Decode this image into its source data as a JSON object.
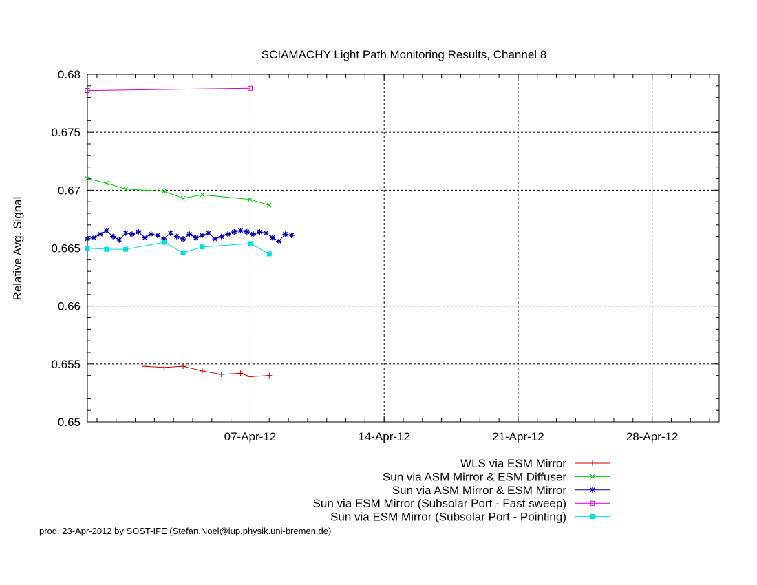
{
  "chart_data": {
    "type": "line",
    "title": "SCIAMACHY Light Path Monitoring Results, Channel 8",
    "xlabel": "",
    "ylabel": "Relative Avg. Signal",
    "x_axis": {
      "type": "date",
      "range": [
        "2012-03-29T12:00",
        "2012-05-01T12:00"
      ],
      "ticks": [
        {
          "date": "2012-04-07",
          "label": "07-Apr-12"
        },
        {
          "date": "2012-04-14",
          "label": "14-Apr-12"
        },
        {
          "date": "2012-04-21",
          "label": "21-Apr-12"
        },
        {
          "date": "2012-04-28",
          "label": "28-Apr-12"
        }
      ]
    },
    "ylim": [
      0.65,
      0.68
    ],
    "y_ticks": [
      "0.65",
      "0.655",
      "0.66",
      "0.665",
      "0.67",
      "0.675",
      "0.68"
    ],
    "grid": true,
    "legend_position": "bottom-right",
    "series": [
      {
        "name": "WLS via ESM Mirror",
        "color": "#cc0000",
        "marker": "plus",
        "points": [
          [
            "2012-04-01T12:00",
            0.6548
          ],
          [
            "2012-04-02T12:00",
            0.6547
          ],
          [
            "2012-04-03T12:00",
            0.6548
          ],
          [
            "2012-04-04T12:00",
            0.6544
          ],
          [
            "2012-04-05T12:00",
            0.6541
          ],
          [
            "2012-04-06T12:00",
            0.6542
          ],
          [
            "2012-04-07T00:00",
            0.6539
          ],
          [
            "2012-04-08T00:00",
            0.654
          ]
        ]
      },
      {
        "name": "Sun via ASM Mirror & ESM Diffuser",
        "color": "#00cc00",
        "marker": "cross",
        "points": [
          [
            "2012-03-29T12:00",
            0.671
          ],
          [
            "2012-03-30T12:00",
            0.6706
          ],
          [
            "2012-03-31T12:00",
            0.6701
          ],
          [
            "2012-04-02T12:00",
            0.6699
          ],
          [
            "2012-04-03T12:00",
            0.6693
          ],
          [
            "2012-04-04T12:00",
            0.6696
          ],
          [
            "2012-04-07T00:00",
            0.6692
          ],
          [
            "2012-04-08T00:00",
            0.6687
          ]
        ]
      },
      {
        "name": "Sun via ASM Mirror & ESM Mirror",
        "color": "#0000b0",
        "marker": "star",
        "points": [
          [
            "2012-03-29T12:00",
            0.6658
          ],
          [
            "2012-03-29T20:00",
            0.6659
          ],
          [
            "2012-03-30T04:00",
            0.6662
          ],
          [
            "2012-03-30T12:00",
            0.6665
          ],
          [
            "2012-03-30T20:00",
            0.666
          ],
          [
            "2012-03-31T04:00",
            0.6657
          ],
          [
            "2012-03-31T12:00",
            0.6663
          ],
          [
            "2012-03-31T20:00",
            0.6662
          ],
          [
            "2012-04-01T04:00",
            0.6664
          ],
          [
            "2012-04-01T12:00",
            0.6659
          ],
          [
            "2012-04-01T20:00",
            0.6662
          ],
          [
            "2012-04-02T04:00",
            0.6661
          ],
          [
            "2012-04-02T12:00",
            0.6658
          ],
          [
            "2012-04-02T20:00",
            0.6663
          ],
          [
            "2012-04-03T04:00",
            0.666
          ],
          [
            "2012-04-03T12:00",
            0.6658
          ],
          [
            "2012-04-03T20:00",
            0.6662
          ],
          [
            "2012-04-04T04:00",
            0.6659
          ],
          [
            "2012-04-04T12:00",
            0.6661
          ],
          [
            "2012-04-04T20:00",
            0.6663
          ],
          [
            "2012-04-05T04:00",
            0.6658
          ],
          [
            "2012-04-05T12:00",
            0.666
          ],
          [
            "2012-04-05T20:00",
            0.6662
          ],
          [
            "2012-04-06T04:00",
            0.6664
          ],
          [
            "2012-04-06T12:00",
            0.6665
          ],
          [
            "2012-04-06T20:00",
            0.6664
          ],
          [
            "2012-04-07T04:00",
            0.6662
          ],
          [
            "2012-04-07T12:00",
            0.6664
          ],
          [
            "2012-04-07T20:00",
            0.6663
          ],
          [
            "2012-04-08T04:00",
            0.6659
          ],
          [
            "2012-04-08T12:00",
            0.6656
          ],
          [
            "2012-04-08T20:00",
            0.6662
          ],
          [
            "2012-04-09T04:00",
            0.6661
          ]
        ]
      },
      {
        "name": "Sun via ESM Mirror (Subsolar Port - Fast sweep)",
        "color": "#cc00cc",
        "marker": "square",
        "points": [
          [
            "2012-03-29T12:00",
            0.6786
          ],
          [
            "2012-04-07T00:00",
            0.6788
          ]
        ]
      },
      {
        "name": "Sun via ESM Mirror (Subsolar Port - Pointing)",
        "color": "#00dddd",
        "marker": "filled-square",
        "points": [
          [
            "2012-03-29T12:00",
            0.665
          ],
          [
            "2012-03-30T12:00",
            0.6649
          ],
          [
            "2012-03-31T12:00",
            0.6649
          ],
          [
            "2012-04-02T12:00",
            0.6655
          ],
          [
            "2012-04-03T12:00",
            0.6646
          ],
          [
            "2012-04-04T12:00",
            0.6651
          ],
          [
            "2012-04-07T00:00",
            0.6654
          ],
          [
            "2012-04-08T00:00",
            0.6645
          ]
        ]
      }
    ],
    "footer": "prod. 23-Apr-2012 by SOST-IFE (Stefan.Noel@iup.physik.uni-bremen.de)"
  }
}
